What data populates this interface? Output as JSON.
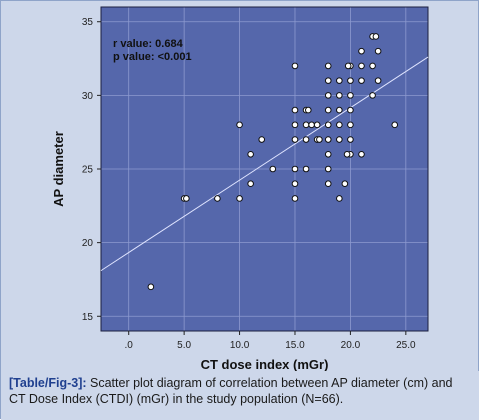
{
  "chart_data": {
    "type": "scatter",
    "xlabel": "CT dose index (mGr)",
    "ylabel": "AP diameter",
    "xlim": [
      -2.5,
      27
    ],
    "ylim": [
      14,
      36
    ],
    "xticks": [
      0,
      5,
      10,
      15,
      20,
      25
    ],
    "xtick_labels": [
      ".0",
      "5.0",
      "10.0",
      "15.0",
      "20.0",
      "25.0"
    ],
    "yticks": [
      15,
      20,
      25,
      30,
      35
    ],
    "ytick_labels": [
      "15",
      "20",
      "25",
      "30",
      "35"
    ],
    "grid": true,
    "annotations": [
      "r value: 0.684",
      "p value: <0.001"
    ],
    "fit_line": {
      "x": [
        -2.5,
        27
      ],
      "y": [
        18.1,
        32.6
      ]
    },
    "points": [
      {
        "x": 2,
        "y": 17
      },
      {
        "x": 5,
        "y": 23
      },
      {
        "x": 5.2,
        "y": 23
      },
      {
        "x": 8,
        "y": 23
      },
      {
        "x": 10,
        "y": 23
      },
      {
        "x": 10,
        "y": 28
      },
      {
        "x": 11,
        "y": 24
      },
      {
        "x": 11,
        "y": 26
      },
      {
        "x": 12,
        "y": 27
      },
      {
        "x": 13,
        "y": 25
      },
      {
        "x": 15,
        "y": 23
      },
      {
        "x": 15,
        "y": 24
      },
      {
        "x": 15,
        "y": 25
      },
      {
        "x": 15,
        "y": 27
      },
      {
        "x": 15,
        "y": 28
      },
      {
        "x": 15,
        "y": 29
      },
      {
        "x": 15,
        "y": 32
      },
      {
        "x": 16,
        "y": 25
      },
      {
        "x": 16,
        "y": 27
      },
      {
        "x": 16,
        "y": 28
      },
      {
        "x": 16,
        "y": 29
      },
      {
        "x": 16.2,
        "y": 29
      },
      {
        "x": 16.5,
        "y": 28
      },
      {
        "x": 17,
        "y": 27
      },
      {
        "x": 17,
        "y": 28
      },
      {
        "x": 17.2,
        "y": 27
      },
      {
        "x": 18,
        "y": 24
      },
      {
        "x": 18,
        "y": 25
      },
      {
        "x": 18,
        "y": 26
      },
      {
        "x": 18,
        "y": 27
      },
      {
        "x": 18,
        "y": 28
      },
      {
        "x": 18,
        "y": 29
      },
      {
        "x": 18,
        "y": 30
      },
      {
        "x": 18,
        "y": 31
      },
      {
        "x": 18,
        "y": 32
      },
      {
        "x": 19,
        "y": 23
      },
      {
        "x": 19,
        "y": 27
      },
      {
        "x": 19,
        "y": 28
      },
      {
        "x": 19,
        "y": 29
      },
      {
        "x": 19,
        "y": 30
      },
      {
        "x": 19,
        "y": 31
      },
      {
        "x": 19.5,
        "y": 24
      },
      {
        "x": 20,
        "y": 26
      },
      {
        "x": 20,
        "y": 27
      },
      {
        "x": 20,
        "y": 28
      },
      {
        "x": 20,
        "y": 29
      },
      {
        "x": 20,
        "y": 30
      },
      {
        "x": 20,
        "y": 31
      },
      {
        "x": 20,
        "y": 32
      },
      {
        "x": 19.8,
        "y": 32
      },
      {
        "x": 19.7,
        "y": 26
      },
      {
        "x": 21,
        "y": 26
      },
      {
        "x": 21,
        "y": 31
      },
      {
        "x": 21,
        "y": 32
      },
      {
        "x": 21,
        "y": 33
      },
      {
        "x": 22,
        "y": 30
      },
      {
        "x": 22,
        "y": 32
      },
      {
        "x": 22,
        "y": 34
      },
      {
        "x": 22.3,
        "y": 34
      },
      {
        "x": 22.5,
        "y": 31
      },
      {
        "x": 22.5,
        "y": 33
      },
      {
        "x": 24,
        "y": 28
      }
    ]
  },
  "caption": {
    "ref": "[Table/Fig-3]:",
    "text": " Scatter plot diagram of correlation between AP diameter (cm) and CT Dose Index (CTDI) (mGr) in the study population (N=66)."
  }
}
